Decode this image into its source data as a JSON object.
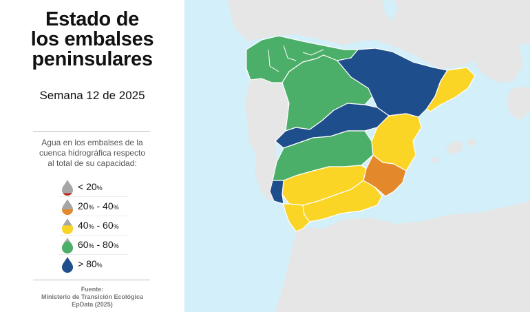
{
  "title": {
    "line1": "Estado de",
    "line2": "los embalses",
    "line3": "peninsulares"
  },
  "subtitle": "Semana 12 de 2025",
  "description": {
    "line1": "Agua en los embalses de la",
    "line2": "cuenca hidrográfica respecto",
    "line3": "al total de su capacidad:"
  },
  "legend": [
    {
      "label": "< 20",
      "unit": "%",
      "suffix": "",
      "color": "#c0281e",
      "fill_fraction": 0.15
    },
    {
      "label": "20",
      "unit": "%",
      "suffix": " - 40",
      "unit2": "%",
      "color": "#e4892b",
      "fill_fraction": 0.35
    },
    {
      "label": "40",
      "unit": "%",
      "suffix": " - 60",
      "unit2": "%",
      "color": "#fbd526",
      "fill_fraction": 0.55
    },
    {
      "label": "60",
      "unit": "%",
      "suffix": " - 80",
      "unit2": "%",
      "color": "#4caf69",
      "fill_fraction": 0.75
    },
    {
      "label": "> 80",
      "unit": "%",
      "suffix": "",
      "color": "#1f4e8c",
      "fill_fraction": 1.0
    }
  ],
  "source": {
    "line1": "Fuente:",
    "line2": "Ministerio de Transición Ecológica",
    "line3": "EpData (2025)"
  },
  "colors": {
    "sea": "#d3eff9",
    "land": "#e6e6e6",
    "empty_drop": "#a6a6a6"
  },
  "basins": [
    {
      "name": "Miño-Sil / Cantábrico / Galicia",
      "class": "60-80"
    },
    {
      "name": "Duero",
      "class": "60-80"
    },
    {
      "name": "Ebro",
      "class": "> 80"
    },
    {
      "name": "Cuencas internas de Cataluña",
      "class": "40-60"
    },
    {
      "name": "Tajo",
      "class": "> 80"
    },
    {
      "name": "Guadiana",
      "class": "60-80"
    },
    {
      "name": "Júcar",
      "class": "40-60"
    },
    {
      "name": "Segura",
      "class": "20-40"
    },
    {
      "name": "Guadalquivir",
      "class": "40-60"
    },
    {
      "name": "Cuencas mediterráneas andaluzas",
      "class": "40-60"
    },
    {
      "name": "Guadalete-Barbate",
      "class": "40-60"
    },
    {
      "name": "Tinto, Odiel y Piedras",
      "class": "> 80"
    }
  ]
}
